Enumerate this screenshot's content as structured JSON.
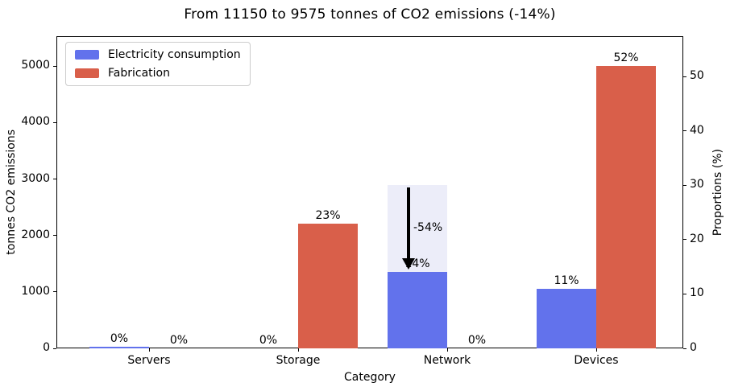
{
  "chart_data": {
    "type": "bar",
    "title": "From 11150 to 9575 tonnes of CO2 emissions (-14%)",
    "xlabel": "Category",
    "ylabel_left": "tonnes CO2 emissions",
    "ylabel_right": "Proportions (%)",
    "categories": [
      "Servers",
      "Storage",
      "Network",
      "Devices"
    ],
    "series": [
      {
        "name": "Electricity consumption",
        "color": "#6272ec",
        "values_pct": [
          0.3,
          0,
          14,
          11
        ],
        "labels": [
          "0%",
          "0%",
          "14%",
          "11%"
        ]
      },
      {
        "name": "Fabrication",
        "color": "#d95f4a",
        "values_pct": [
          0,
          23,
          0,
          52
        ],
        "labels": [
          "0%",
          "23%",
          "0%",
          "52%"
        ]
      }
    ],
    "left_axis": {
      "ticks": [
        0,
        1000,
        2000,
        3000,
        4000,
        5000
      ],
      "lim": [
        0,
        5530
      ]
    },
    "right_axis": {
      "ticks": [
        0,
        10,
        20,
        30,
        40,
        50
      ],
      "lim": [
        0,
        57.4
      ]
    },
    "annotation": {
      "category": "Network",
      "series": "Electricity consumption",
      "previous_pct": 30,
      "current_pct": 14,
      "change_label": "-54%",
      "current_label": "14%",
      "highlight_color": "#ecedf9",
      "arrow_color": "#000000"
    },
    "legend": {
      "position": "upper-left"
    },
    "grid": false,
    "colors": {
      "axis": "#000000",
      "text": "#000000",
      "background": "#ffffff"
    }
  }
}
